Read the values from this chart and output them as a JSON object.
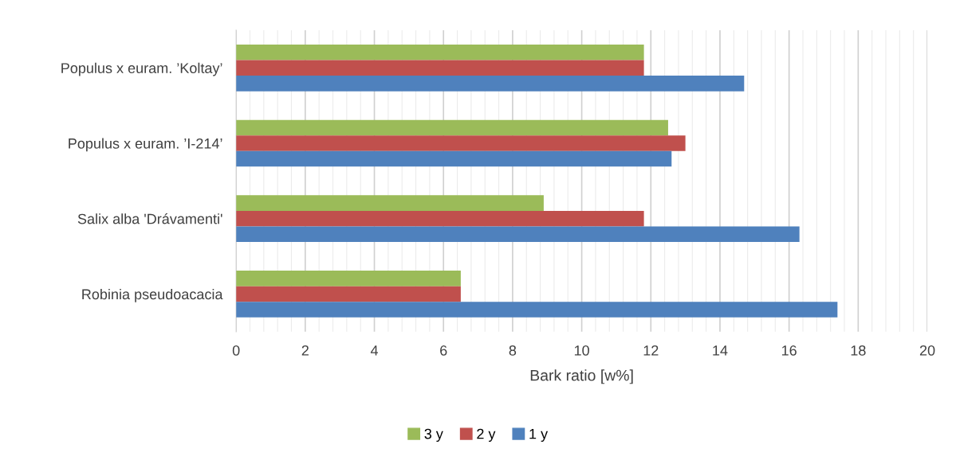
{
  "chart_data": {
    "type": "bar",
    "orientation": "horizontal",
    "xlabel": "Bark ratio [w%]",
    "categories": [
      "Populus x euram. ’Koltay’",
      "Populus x euram. ’I-214’",
      "Salix alba 'Drávamenti'",
      "Robinia pseudoacacia"
    ],
    "series": [
      {
        "name": "3 y",
        "color": "#9bbb59",
        "values": [
          11.8,
          12.5,
          8.9,
          6.5
        ]
      },
      {
        "name": "2 y",
        "color": "#c0504d",
        "values": [
          11.8,
          13.0,
          11.8,
          6.5
        ]
      },
      {
        "name": "1 y",
        "color": "#4f81bd",
        "values": [
          14.7,
          12.6,
          16.3,
          17.4
        ]
      }
    ],
    "xlim": [
      0,
      20
    ],
    "xticks": [
      0,
      {
        "value": 0.4,
        "label": null
      },
      {
        "value": 0.8,
        "label": null
      },
      {
        "value": 1.2,
        "label": null
      },
      {
        "value": 1.6,
        "label": null
      },
      2,
      {
        "value": 2.4,
        "label": null
      },
      {
        "value": 2.8,
        "label": null
      },
      {
        "value": 3.2,
        "label": null
      },
      {
        "value": 3.6,
        "label": null
      },
      4,
      {
        "value": 4.4,
        "label": null
      },
      {
        "value": 4.8,
        "label": null
      },
      {
        "value": 5.2,
        "label": null
      },
      {
        "value": 5.6,
        "label": null
      },
      6,
      {
        "value": 6.4,
        "label": null
      },
      {
        "value": 6.8,
        "label": null
      },
      {
        "value": 7.2,
        "label": null
      },
      {
        "value": 7.6,
        "label": null
      },
      8,
      {
        "value": 8.4,
        "label": null
      },
      {
        "value": 8.8,
        "label": null
      },
      {
        "value": 9.2,
        "label": null
      },
      {
        "value": 9.6,
        "label": null
      },
      10,
      {
        "value": 10.4,
        "label": null
      },
      {
        "value": 10.8,
        "label": null
      },
      {
        "value": 11.2,
        "label": null
      },
      {
        "value": 11.6,
        "label": null
      },
      12,
      {
        "value": 12.4,
        "label": null
      },
      {
        "value": 12.8,
        "label": null
      },
      {
        "value": 13.2,
        "label": null
      },
      {
        "value": 13.6,
        "label": null
      },
      14,
      {
        "value": 14.4,
        "label": null
      },
      {
        "value": 14.8,
        "label": null
      },
      {
        "value": 15.2,
        "label": null
      },
      {
        "value": 15.6,
        "label": null
      },
      16,
      {
        "value": 16.4,
        "label": null
      },
      {
        "value": 16.8,
        "label": null
      },
      {
        "value": 17.2,
        "label": null
      },
      {
        "value": 17.6,
        "label": null
      },
      18,
      {
        "value": 18.4,
        "label": null
      },
      {
        "value": 18.8,
        "label": null
      },
      {
        "value": 19.2,
        "label": null
      },
      {
        "value": 19.6,
        "label": null
      },
      20
    ],
    "grid": "x",
    "legend": "bottom"
  }
}
